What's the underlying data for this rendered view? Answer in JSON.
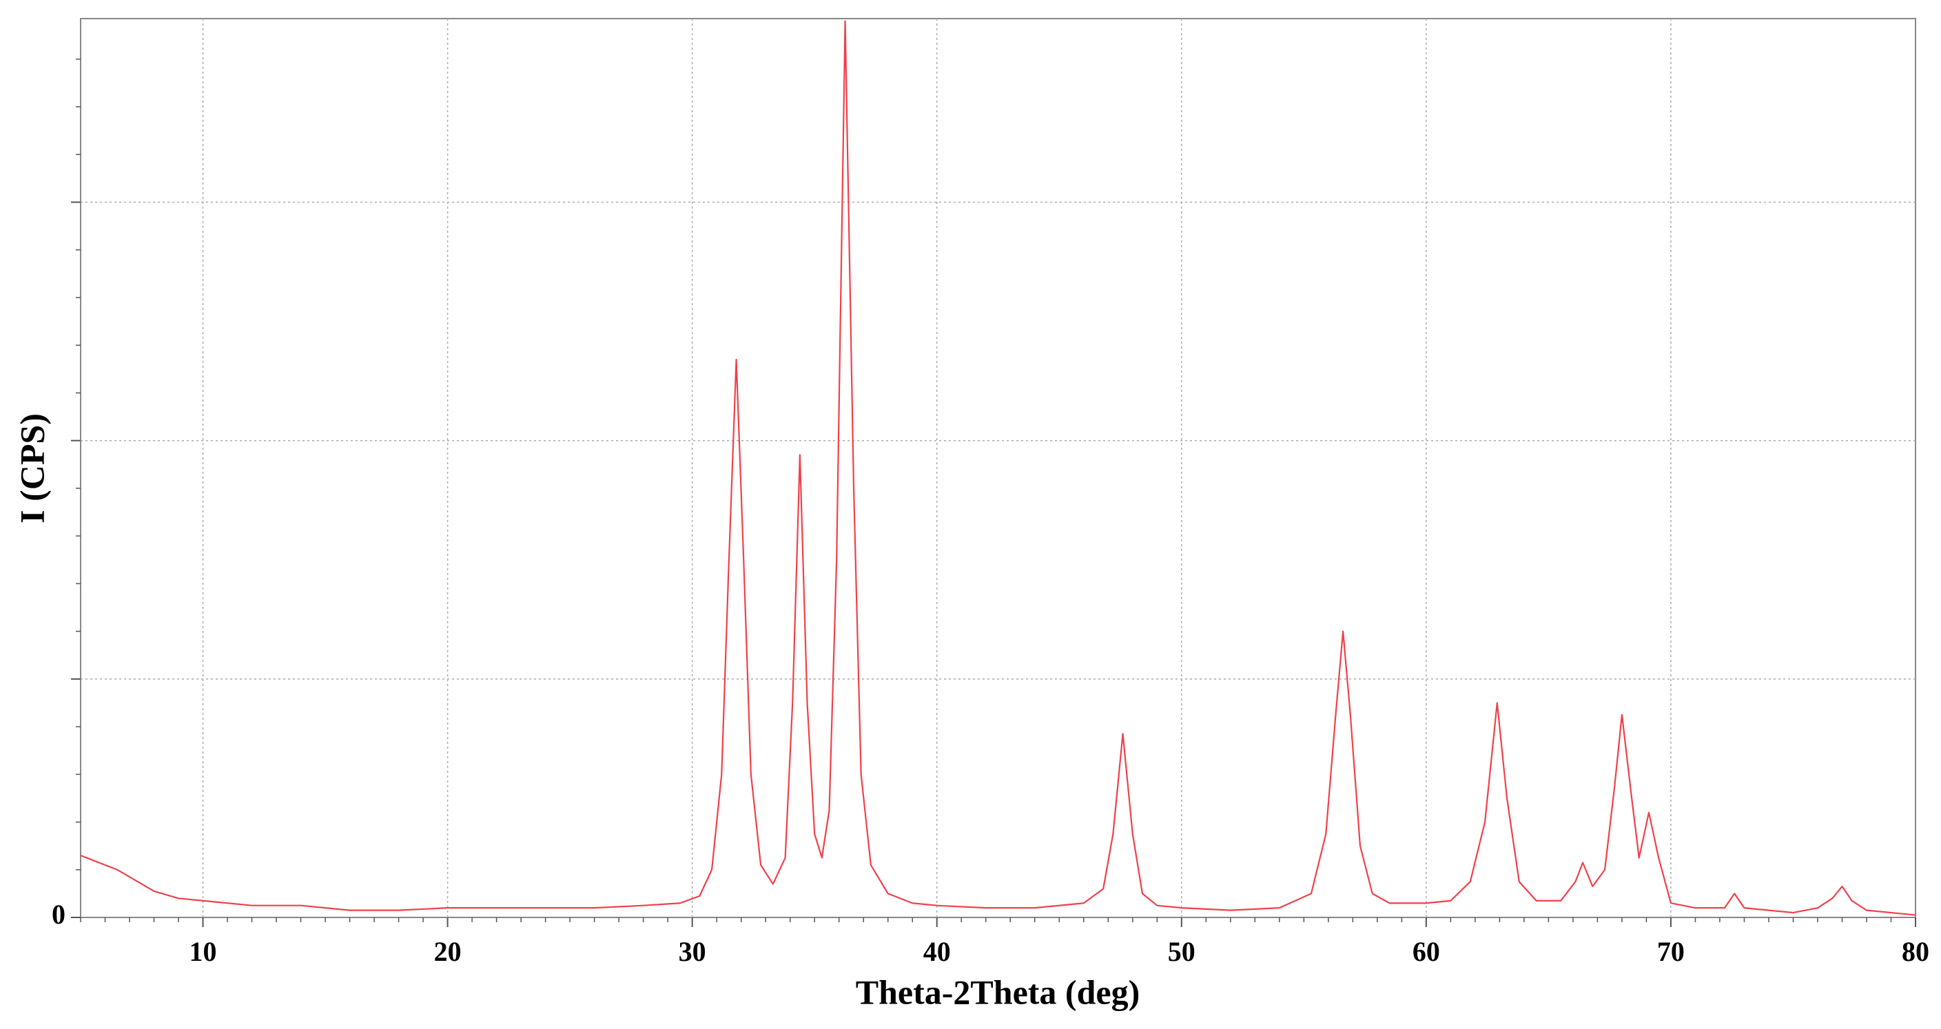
{
  "chart_data": {
    "type": "line",
    "x_label": "Theta-2Theta (deg)",
    "y_label": "I (CPS)",
    "xlim": [
      5,
      80
    ],
    "xticks": [
      10,
      20,
      30,
      40,
      50,
      60,
      70,
      80
    ],
    "ylim": [
      0,
      3.77
    ],
    "yticks": [
      0,
      {
        "value": 1,
        "label": null
      },
      {
        "value": 2,
        "label": null
      },
      {
        "value": 3,
        "label": null
      }
    ],
    "grid": true,
    "series": [
      {
        "color": "#f0404a",
        "x": [
          5,
          5.5,
          6,
          6.5,
          7,
          7.5,
          8,
          9,
          10,
          12,
          14,
          16,
          18,
          20,
          22,
          24,
          26,
          28,
          29.5,
          30.3,
          30.8,
          31.2,
          31.5,
          31.8,
          32.1,
          32.4,
          32.8,
          33.3,
          33.8,
          34.1,
          34.4,
          34.7,
          35,
          35.3,
          35.6,
          35.9,
          36.25,
          36.6,
          36.9,
          37.3,
          38,
          39,
          40,
          42,
          44,
          46,
          46.8,
          47.2,
          47.6,
          48,
          48.4,
          49,
          50,
          52,
          54,
          55.3,
          55.9,
          56.3,
          56.6,
          56.9,
          57.3,
          57.8,
          58.5,
          60,
          61,
          61.8,
          62.4,
          62.9,
          63.3,
          63.8,
          64.5,
          65.5,
          66.1,
          66.4,
          66.8,
          67.3,
          67.7,
          68,
          68.4,
          68.7,
          69.1,
          69.5,
          70,
          71,
          72.2,
          72.6,
          73,
          74,
          75,
          76,
          76.6,
          77,
          77.4,
          78,
          79,
          80
        ],
        "values": [
          0.26,
          0.24,
          0.22,
          0.2,
          0.17,
          0.14,
          0.11,
          0.08,
          0.07,
          0.05,
          0.05,
          0.03,
          0.03,
          0.04,
          0.04,
          0.04,
          0.04,
          0.05,
          0.06,
          0.09,
          0.2,
          0.6,
          1.5,
          2.34,
          1.5,
          0.6,
          0.22,
          0.14,
          0.25,
          0.9,
          1.94,
          0.9,
          0.35,
          0.25,
          0.45,
          1.5,
          3.76,
          1.8,
          0.6,
          0.22,
          0.1,
          0.06,
          0.05,
          0.04,
          0.04,
          0.06,
          0.12,
          0.35,
          0.77,
          0.35,
          0.1,
          0.05,
          0.04,
          0.03,
          0.04,
          0.1,
          0.35,
          0.85,
          1.2,
          0.85,
          0.3,
          0.1,
          0.06,
          0.06,
          0.07,
          0.15,
          0.4,
          0.9,
          0.5,
          0.15,
          0.07,
          0.07,
          0.15,
          0.23,
          0.13,
          0.2,
          0.55,
          0.85,
          0.5,
          0.25,
          0.44,
          0.25,
          0.06,
          0.04,
          0.04,
          0.1,
          0.04,
          0.03,
          0.02,
          0.04,
          0.08,
          0.13,
          0.07,
          0.03,
          0.02,
          0.01
        ]
      }
    ]
  }
}
